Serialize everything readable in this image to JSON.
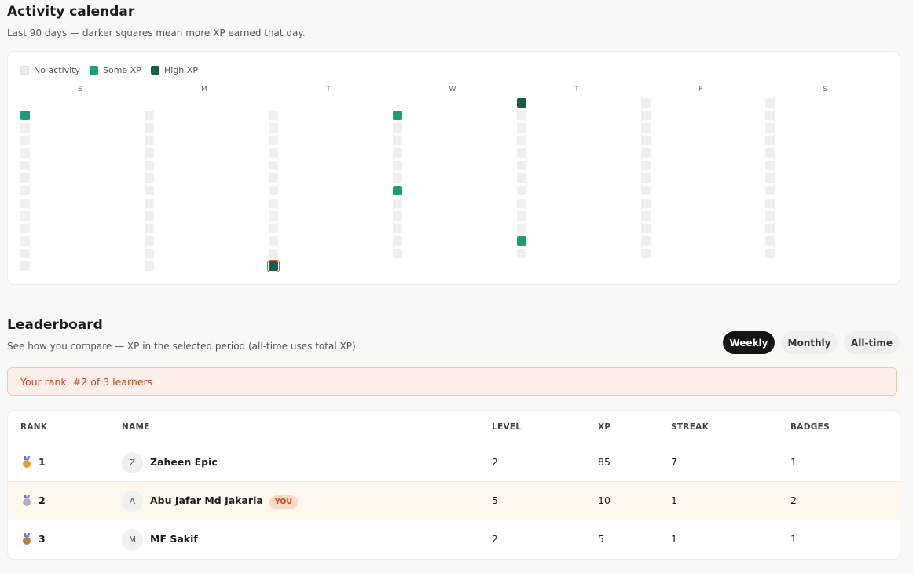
{
  "calendar": {
    "title": "Activity calendar",
    "subtitle": "Last 90 days — darker squares mean more XP earned that day.",
    "legend": [
      {
        "label": "No activity",
        "color": "#efefef"
      },
      {
        "label": "Some XP",
        "color": "#17a078"
      },
      {
        "label": "High XP",
        "color": "#155e4a"
      }
    ],
    "days": [
      {
        "label": "S",
        "levels": [
          null,
          1,
          0,
          0,
          0,
          0,
          0,
          0,
          0,
          0,
          0,
          0,
          0,
          0
        ]
      },
      {
        "label": "M",
        "levels": [
          null,
          0,
          0,
          0,
          0,
          0,
          0,
          0,
          0,
          0,
          0,
          0,
          0,
          0
        ]
      },
      {
        "label": "T",
        "levels": [
          null,
          0,
          0,
          0,
          0,
          0,
          0,
          0,
          0,
          0,
          0,
          0,
          0,
          2
        ]
      },
      {
        "label": "W",
        "levels": [
          null,
          1,
          0,
          0,
          0,
          0,
          0,
          1,
          0,
          0,
          0,
          0,
          0,
          null
        ]
      },
      {
        "label": "T",
        "levels": [
          2,
          0,
          0,
          0,
          0,
          0,
          0,
          0,
          0,
          0,
          0,
          1,
          0,
          null
        ]
      },
      {
        "label": "F",
        "levels": [
          0,
          0,
          0,
          0,
          0,
          0,
          0,
          0,
          0,
          0,
          0,
          0,
          0,
          null
        ]
      },
      {
        "label": "S",
        "levels": [
          0,
          0,
          0,
          0,
          0,
          0,
          0,
          0,
          0,
          0,
          0,
          0,
          0,
          null
        ]
      }
    ]
  },
  "leaderboard": {
    "title": "Leaderboard",
    "subtitle": "See how you compare — XP in the selected period (all-time uses total XP).",
    "tabs": [
      "Weekly",
      "Monthly",
      "All-time"
    ],
    "active_tab": 0,
    "rank_note": "Your rank: #2 of 3 learners",
    "columns": [
      "RANK",
      "NAME",
      "LEVEL",
      "XP",
      "STREAK",
      "BADGES"
    ],
    "rows": [
      {
        "rank": 1,
        "initial": "Z",
        "name": "Zaheen Epic",
        "level": 2,
        "xp": 85,
        "streak": 7,
        "badges": 1
      },
      {
        "rank": 2,
        "initial": "A",
        "name": "Abu Jafar Md Jakaria",
        "tag": "YOU",
        "level": 5,
        "xp": 10,
        "streak": 1,
        "badges": 2
      },
      {
        "rank": 3,
        "initial": "M",
        "name": "MF Sakif",
        "level": 2,
        "xp": 5,
        "streak": 1,
        "badges": 1
      }
    ]
  }
}
